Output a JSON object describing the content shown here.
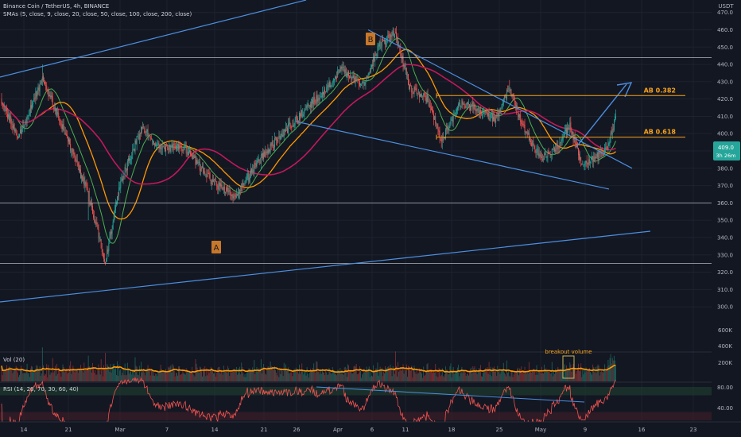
{
  "header": {
    "title": "Binance Coin / TetherUS, 4h, BINANCE",
    "indicator": "SMAs (5, close, 9, close, 20, close, 50, close, 100, close, 200, close)",
    "currency": "USDT",
    "price_tag": "409.0",
    "price_tag_sub": "3h 26m"
  },
  "panes": {
    "volume_label": "Vol (20)",
    "rsi_label": "RSI (14, 28, 70, 30, 60, 40)"
  },
  "annotations": {
    "point_a": "A",
    "point_b": "B",
    "fib_382": "AB 0.382",
    "fib_618": "AB 0.618",
    "breakout": "breakout volume"
  },
  "colors": {
    "background": "#131722",
    "grid": "#1e222d",
    "up": "#26a69a",
    "down": "#ef5350",
    "trendline": "#4b8fe0",
    "fib": "#f7a21b",
    "sma_green": "#4caf50",
    "sma_orange": "#ff9800",
    "sma_magenta": "#c2185b",
    "rsi": "#ef5350",
    "volume_ma": "#ff9800",
    "label_box": "#c8782a"
  },
  "chart_data": {
    "type": "candlestick",
    "symbol": "BNBUSDT",
    "timeframe": "4h",
    "price_ticks": [
      "470.0",
      "460.0",
      "450.0",
      "440.0",
      "430.0",
      "420.0",
      "410.0",
      "400.0",
      "390.0",
      "380.0",
      "370.0",
      "360.0",
      "350.0",
      "340.0",
      "330.0",
      "320.0",
      "310.0",
      "300.0"
    ],
    "volume_ticks": [
      "600K",
      "400K",
      "200K"
    ],
    "rsi_ticks": [
      "80.00",
      "40.00"
    ],
    "x_ticks": [
      "14",
      "21",
      "Mar",
      "7",
      "14",
      "21",
      "26",
      "Apr",
      "6",
      "11",
      "18",
      "25",
      "May",
      "9",
      "16",
      "23"
    ],
    "anchors": [
      {
        "t": 0,
        "p": 418
      },
      {
        "t": 20,
        "p": 398
      },
      {
        "t": 48,
        "p": 432
      },
      {
        "t": 75,
        "p": 400
      },
      {
        "t": 102,
        "p": 365
      },
      {
        "t": 122,
        "p": 326
      },
      {
        "t": 140,
        "p": 372
      },
      {
        "t": 165,
        "p": 404
      },
      {
        "t": 185,
        "p": 392
      },
      {
        "t": 215,
        "p": 392
      },
      {
        "t": 248,
        "p": 372
      },
      {
        "t": 275,
        "p": 364
      },
      {
        "t": 300,
        "p": 383
      },
      {
        "t": 330,
        "p": 400
      },
      {
        "t": 370,
        "p": 420
      },
      {
        "t": 400,
        "p": 437
      },
      {
        "t": 425,
        "p": 428
      },
      {
        "t": 445,
        "p": 452
      },
      {
        "t": 463,
        "p": 458
      },
      {
        "t": 480,
        "p": 426
      },
      {
        "t": 500,
        "p": 420
      },
      {
        "t": 518,
        "p": 396
      },
      {
        "t": 538,
        "p": 418
      },
      {
        "t": 560,
        "p": 414
      },
      {
        "t": 580,
        "p": 408
      },
      {
        "t": 597,
        "p": 426
      },
      {
        "t": 615,
        "p": 402
      },
      {
        "t": 635,
        "p": 385
      },
      {
        "t": 655,
        "p": 393
      },
      {
        "t": 668,
        "p": 405
      },
      {
        "t": 683,
        "p": 381
      },
      {
        "t": 700,
        "p": 387
      },
      {
        "t": 712,
        "p": 391
      },
      {
        "t": 722,
        "p": 410
      }
    ],
    "levels": [
      {
        "name": "horizontal-resistance",
        "price": 444
      },
      {
        "name": "horizontal-support",
        "price": 360
      },
      {
        "name": "lower-horizontal",
        "price": 325
      }
    ],
    "fibonacci": [
      {
        "label": "AB 0.382",
        "price": 422
      },
      {
        "label": "AB 0.618",
        "price": 398
      }
    ],
    "points": [
      {
        "label": "A",
        "price": 362
      },
      {
        "label": "B",
        "price": 460
      }
    ],
    "rsi_range": [
      20,
      90
    ],
    "grid": true
  }
}
